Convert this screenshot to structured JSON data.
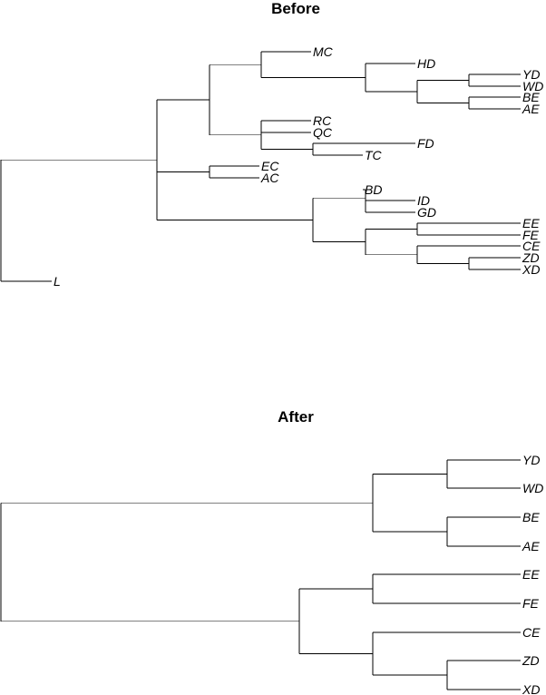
{
  "trees": {
    "before": {
      "title": "Before",
      "root": {
        "children": [
          {
            "children": [
              {
                "children": [
                  {
                    "children": [
                      {
                        "label": "MC"
                      },
                      {
                        "children": [
                          {
                            "label": "HD"
                          },
                          {
                            "children": [
                              {
                                "children": [
                                  {
                                    "label": "YD"
                                  },
                                  {
                                    "label": "WD"
                                  }
                                ]
                              },
                              {
                                "children": [
                                  {
                                    "label": "BE"
                                  },
                                  {
                                    "label": "AE"
                                  }
                                ]
                              }
                            ]
                          }
                        ]
                      }
                    ]
                  },
                  {
                    "children": [
                      {
                        "label": "RC"
                      },
                      {
                        "label": "QC"
                      },
                      {
                        "children": [
                          {
                            "label": "FD"
                          },
                          {
                            "label": "TC"
                          }
                        ]
                      }
                    ]
                  }
                ]
              },
              {
                "children": [
                  {
                    "label": "EC"
                  },
                  {
                    "label": "AC"
                  }
                ]
              },
              {
                "children": [
                  {
                    "children": [
                      {
                        "label": "BD"
                      },
                      {
                        "children": [
                          {
                            "label": "ID"
                          },
                          {
                            "label": "GD"
                          }
                        ]
                      }
                    ]
                  },
                  {
                    "children": [
                      {
                        "children": [
                          {
                            "label": "EE"
                          },
                          {
                            "label": "FE"
                          }
                        ]
                      },
                      {
                        "children": [
                          {
                            "label": "CE"
                          },
                          {
                            "children": [
                              {
                                "label": "ZD"
                              },
                              {
                                "label": "XD"
                              }
                            ]
                          }
                        ]
                      }
                    ]
                  }
                ]
              }
            ]
          },
          {
            "label": "L"
          }
        ]
      }
    },
    "after": {
      "title": "After",
      "root": {
        "children": [
          {
            "children": [
              {
                "children": [
                  {
                    "label": "YD"
                  },
                  {
                    "label": "WD"
                  }
                ]
              },
              {
                "children": [
                  {
                    "label": "BE"
                  },
                  {
                    "label": "AE"
                  }
                ]
              }
            ]
          },
          {
            "children": [
              {
                "children": [
                  {
                    "label": "EE"
                  },
                  {
                    "label": "FE"
                  }
                ]
              },
              {
                "children": [
                  {
                    "label": "CE"
                  },
                  {
                    "children": [
                      {
                        "label": "ZD"
                      },
                      {
                        "label": "XD"
                      }
                    ]
                  }
                ]
              }
            ]
          }
        ]
      }
    }
  },
  "colors": {
    "line": "#000000",
    "text": "#000000",
    "background": "#ffffff"
  }
}
